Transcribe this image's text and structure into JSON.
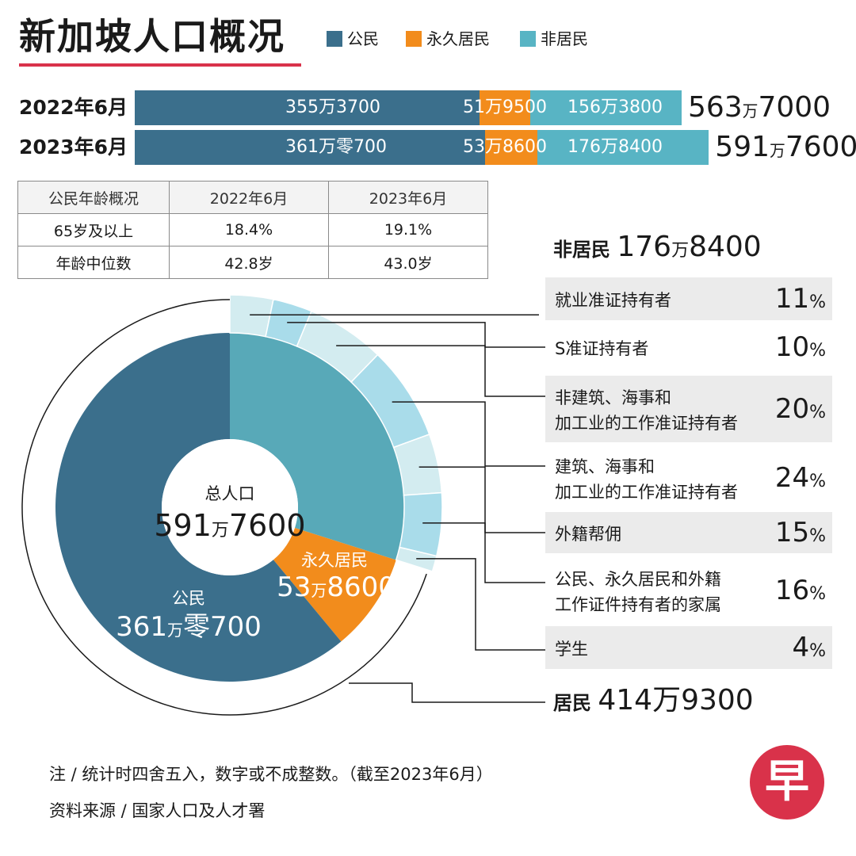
{
  "title": "新加坡人口概况",
  "legend": [
    {
      "label": "公民",
      "color": "#3b6f8c"
    },
    {
      "label": "永久居民",
      "color": "#f28c1c"
    },
    {
      "label": "非居民",
      "color": "#58b4c4"
    }
  ],
  "chart_data": [
    {
      "type": "bar",
      "orientation": "horizontal-stacked",
      "categories": [
        "2022年6月",
        "2023年6月"
      ],
      "series": [
        {
          "name": "公民",
          "values": [
            3553700,
            3610700
          ],
          "value_labels": [
            "355万3700",
            "361万零700"
          ]
        },
        {
          "name": "永久居民",
          "values": [
            519500,
            538600
          ],
          "value_labels": [
            "51万9500",
            "53万8600"
          ]
        },
        {
          "name": "非居民",
          "values": [
            1563800,
            1768400
          ],
          "value_labels": [
            "156万3800",
            "176万8400"
          ]
        }
      ],
      "totals": [
        {
          "prefix": "563",
          "unit": "万",
          "suffix": "7000"
        },
        {
          "prefix": "591",
          "unit": "万",
          "suffix": "7600"
        }
      ]
    },
    {
      "type": "table",
      "headers": [
        "公民年龄概况",
        "2022年6月",
        "2023年6月"
      ],
      "rows": [
        [
          "65岁及以上",
          "18.4%",
          "19.1%"
        ],
        [
          "年龄中位数",
          "42.8岁",
          "43.0岁"
        ]
      ]
    },
    {
      "type": "pie",
      "title": "总人口",
      "total": {
        "prefix": "591",
        "unit": "万",
        "suffix": "7600"
      },
      "inner_ring": [
        {
          "name": "非居民",
          "value": 1768400,
          "color": "#58a9b8"
        },
        {
          "name": "永久居民",
          "value": 538600,
          "color": "#f28c1c",
          "label_prefix": "53",
          "label_unit": "万",
          "label_suffix": "8600"
        },
        {
          "name": "公民",
          "value": 3610700,
          "color": "#3b6f8c",
          "label_prefix": "361",
          "label_unit": "万",
          "label_suffix": "零700"
        }
      ],
      "outer_ring_colors": [
        "#d3ecf0",
        "#a9dcea"
      ],
      "non_resident_breakdown": {
        "title": "非居民",
        "total": {
          "prefix": "176",
          "unit": "万",
          "suffix": "8400"
        },
        "categories": [
          {
            "label": "就业准证持有者",
            "percent": "11"
          },
          {
            "label": "S准证持有者",
            "percent": "10"
          },
          {
            "label": "非建筑、海事和\n加工业的工作准证持有者",
            "percent": "20"
          },
          {
            "label": "建筑、海事和\n加工业的工作准证持有者",
            "percent": "24"
          },
          {
            "label": "外籍帮佣",
            "percent": "15"
          },
          {
            "label": "公民、永久居民和外籍\n工作证件持有者的家属",
            "percent": "16"
          },
          {
            "label": "学生",
            "percent": "4"
          }
        ]
      },
      "residents": {
        "title": "居民",
        "total": "414万9300"
      }
    }
  ],
  "notes": {
    "note": "注 / 统计时四舍五入，数字或不成整数。（截至2023年6月）",
    "source": "资料来源 / 国家人口及人才署"
  },
  "logo": {
    "text": "早"
  }
}
